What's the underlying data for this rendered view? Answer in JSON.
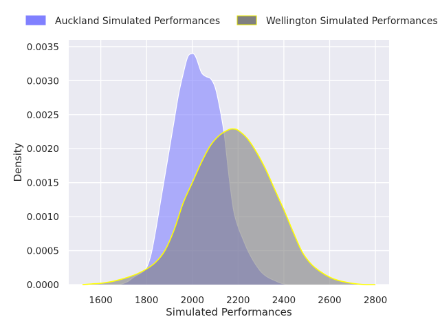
{
  "chart_data": {
    "type": "area",
    "xlabel": "Simulated Performances",
    "ylabel": "Density",
    "xlim": [
      1460,
      2860
    ],
    "ylim": [
      0,
      0.0036
    ],
    "x_ticks": [
      "1600",
      "1800",
      "2000",
      "2200",
      "2400",
      "2600",
      "2800"
    ],
    "y_ticks": [
      "0.0000",
      "0.0005",
      "0.0010",
      "0.0015",
      "0.0020",
      "0.0025",
      "0.0030",
      "0.0035"
    ],
    "grid": true,
    "legend_placement": "top",
    "series": [
      {
        "name": "Auckland Simulated Performances",
        "fill": "#8080ff",
        "fill_opacity": 0.6,
        "edge": "#ffffff",
        "x": [
          1680,
          1700,
          1720,
          1740,
          1760,
          1780,
          1800,
          1820,
          1840,
          1860,
          1880,
          1900,
          1920,
          1940,
          1960,
          1980,
          2000,
          2010,
          2020,
          2040,
          2060,
          2080,
          2100,
          2120,
          2140,
          2160,
          2180,
          2200,
          2220,
          2240,
          2260,
          2280,
          2300,
          2320,
          2340,
          2360,
          2380,
          2400,
          2420
        ],
        "y": [
          0.0,
          2e-05,
          5e-05,
          0.0001,
          0.00014,
          0.00018,
          0.00025,
          0.00045,
          0.0008,
          0.0012,
          0.0016,
          0.002,
          0.0024,
          0.0028,
          0.0031,
          0.00335,
          0.0034,
          0.00338,
          0.00331,
          0.00312,
          0.00306,
          0.00303,
          0.0029,
          0.0026,
          0.0022,
          0.0016,
          0.0011,
          0.00085,
          0.00068,
          0.00052,
          0.00039,
          0.00028,
          0.00019,
          0.00013,
          9e-05,
          6e-05,
          3e-05,
          1e-05,
          0.0
        ]
      },
      {
        "name": "Wellington Simulated Performances",
        "fill": "#808080",
        "fill_opacity": 0.6,
        "edge": "#ffff00",
        "x": [
          1520,
          1560,
          1600,
          1640,
          1680,
          1720,
          1760,
          1800,
          1840,
          1880,
          1920,
          1960,
          2000,
          2040,
          2080,
          2120,
          2160,
          2180,
          2200,
          2240,
          2280,
          2320,
          2360,
          2400,
          2440,
          2480,
          2520,
          2560,
          2600,
          2640,
          2680,
          2720,
          2760,
          2800
        ],
        "y": [
          0.0,
          1e-05,
          2e-05,
          4e-05,
          7e-05,
          0.00011,
          0.00016,
          0.00023,
          0.00033,
          0.0005,
          0.0008,
          0.0012,
          0.0015,
          0.0018,
          0.00205,
          0.0022,
          0.00228,
          0.00229,
          0.00227,
          0.00215,
          0.00195,
          0.0017,
          0.0014,
          0.0011,
          0.00078,
          0.00048,
          0.0003,
          0.00019,
          0.00011,
          6e-05,
          3e-05,
          1e-05,
          0.0,
          0.0
        ]
      }
    ]
  },
  "colors": {
    "plot_bg": "#eaeaf2",
    "grid": "#ffffff",
    "text": "#262626"
  }
}
